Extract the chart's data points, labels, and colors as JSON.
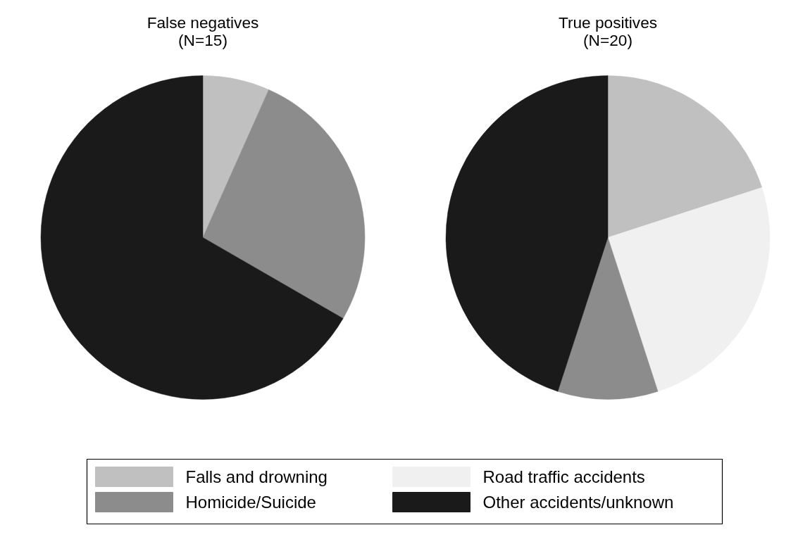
{
  "chart_data": {
    "type": "pie",
    "categories": [
      "Falls and drowning",
      "Road traffic accidents",
      "Homicide/Suicide",
      "Other accidents/unknown"
    ],
    "colors": [
      "#c0c0c0",
      "#f0f0f0",
      "#8c8c8c",
      "#1a1a1a"
    ],
    "legend": "bottom",
    "series": [
      {
        "name": "False negatives",
        "values": [
          6.67,
          0,
          26.67,
          66.66
        ]
      },
      {
        "name": "True positives",
        "values": [
          20,
          25,
          10,
          45
        ]
      }
    ],
    "annotations": [
      "(N=15)",
      "(N=20)"
    ]
  }
}
